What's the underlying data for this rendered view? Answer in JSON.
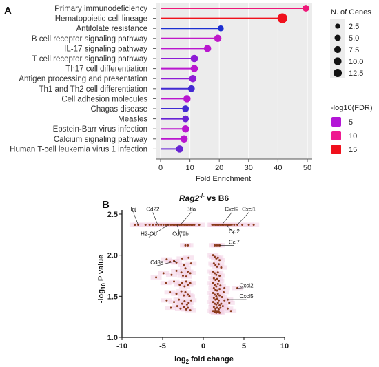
{
  "chart_data": [
    {
      "panel": "A",
      "type": "lollipop",
      "xlabel": "Fold Enrichment",
      "xlim": [
        0,
        52
      ],
      "xticks": [
        0,
        10,
        20,
        30,
        40,
        50
      ],
      "categories": [
        "Primary immunodeficiency",
        "Hematopoietic cell lineage",
        "Antifolate resistance",
        "B cell receptor signaling pathway",
        "IL-17 signaling pathway",
        "T cell receptor signaling pathway",
        "Th17 cell differentiation",
        "Antigen processing and presentation",
        "Th1 and Th2 cell differentiation",
        "Cell adhesion molecules",
        "Chagas disease",
        "Measles",
        "Epstein-Barr virus infection",
        "Calcium signaling pathway",
        "Human T-cell leukemia virus 1 infection"
      ],
      "values": [
        49.5,
        41.5,
        20.5,
        19.5,
        16,
        11.5,
        11.5,
        11,
        10.5,
        9,
        8.5,
        8.5,
        8.5,
        8,
        6.5
      ],
      "n_genes": [
        4,
        12.5,
        2.5,
        5,
        5,
        5,
        5,
        5,
        4,
        5,
        4,
        4,
        5,
        5,
        5
      ],
      "neg_log10_fdr": [
        11,
        16,
        3,
        6,
        5.5,
        4.5,
        5.5,
        4.5,
        3.5,
        5.5,
        3.5,
        4,
        5.5,
        5.5,
        4
      ],
      "legend_size": {
        "title": "N. of Genes",
        "entries": [
          "2.5",
          "5.0",
          "7.5",
          "10.0",
          "12.5"
        ],
        "values": [
          2.5,
          5,
          7.5,
          10,
          12.5
        ]
      },
      "legend_color": {
        "title": "-log10(FDR)",
        "entries": [
          "5",
          "10",
          "15"
        ],
        "colors": [
          "#b316d6",
          "#ee1a90",
          "#f0101c"
        ]
      },
      "colors": {
        "low": "#1c2fd1",
        "mid": "#b316d6",
        "high1": "#ee1a90",
        "high2": "#f0101c",
        "panel_bg": "#ececec"
      }
    },
    {
      "panel": "B",
      "type": "scatter",
      "title_main": "Rag2",
      "title_sup": "-/-",
      "title_rest": " vs B6",
      "xlabel_main": "log",
      "xlabel_sub": "2",
      "xlabel_rest": " fold change",
      "ylabel_pre": "-log",
      "ylabel_sub": "10",
      "ylabel_rest": " P value",
      "xlim": [
        -10,
        10
      ],
      "ylim": [
        1.0,
        2.55
      ],
      "xticks": [
        "-10",
        "-5",
        "0",
        "5",
        "10"
      ],
      "xtick_values": [
        -10,
        -5,
        0,
        5,
        10
      ],
      "yticks": [
        "1.0",
        "1.5",
        "2.0",
        "2.5"
      ],
      "ytick_values": [
        1.0,
        1.5,
        2.0,
        2.5
      ],
      "point_color": "#8b3a1a",
      "annotations": [
        {
          "label": "Igj",
          "x": -8,
          "y": 2.37,
          "lx": -8.6,
          "ly": 2.52
        },
        {
          "label": "Cd22",
          "x": -5.6,
          "y": 2.37,
          "lx": -6.2,
          "ly": 2.52
        },
        {
          "label": "Btla",
          "x": -2.8,
          "y": 2.37,
          "lx": -1.5,
          "ly": 2.52
        },
        {
          "label": "Cxcl9",
          "x": 2.3,
          "y": 2.37,
          "lx": 3.5,
          "ly": 2.52
        },
        {
          "label": "Cxcl1",
          "x": 4.2,
          "y": 2.37,
          "lx": 5.6,
          "ly": 2.52
        },
        {
          "label": "H2-Ob",
          "x": -4.3,
          "y": 2.37,
          "lx": -6.7,
          "ly": 2.22
        },
        {
          "label": "Cd79b",
          "x": -3.2,
          "y": 2.37,
          "lx": -2.8,
          "ly": 2.22
        },
        {
          "label": "Ccl2",
          "x": 2.9,
          "y": 2.37,
          "lx": 3.8,
          "ly": 2.25
        },
        {
          "label": "Ccl7",
          "x": 2.0,
          "y": 2.12,
          "lx": 3.8,
          "ly": 2.12
        },
        {
          "label": "Cd8a",
          "x": -3.3,
          "y": 1.93,
          "lx": -5.7,
          "ly": 1.87
        },
        {
          "label": "Cxcl2",
          "x": 4.2,
          "y": 1.6,
          "lx": 5.3,
          "ly": 1.59
        },
        {
          "label": "Cxcl5",
          "x": 3.0,
          "y": 1.46,
          "lx": 5.3,
          "ly": 1.46
        }
      ],
      "points": [
        [
          -8.4,
          2.37
        ],
        [
          -8.0,
          2.37
        ],
        [
          -7.1,
          2.37
        ],
        [
          -6.6,
          2.37
        ],
        [
          -6.2,
          2.37
        ],
        [
          -5.8,
          2.37
        ],
        [
          -5.5,
          2.37
        ],
        [
          -5.2,
          2.37
        ],
        [
          -4.9,
          2.37
        ],
        [
          -4.6,
          2.37
        ],
        [
          -4.3,
          2.37
        ],
        [
          -4.0,
          2.37
        ],
        [
          -3.7,
          2.37
        ],
        [
          -3.5,
          2.37
        ],
        [
          -3.3,
          2.37
        ],
        [
          -3.1,
          2.37
        ],
        [
          -2.9,
          2.37
        ],
        [
          -2.7,
          2.37
        ],
        [
          -2.5,
          2.37
        ],
        [
          -2.3,
          2.37
        ],
        [
          -2.1,
          2.37
        ],
        [
          -1.9,
          2.37
        ],
        [
          -1.7,
          2.37
        ],
        [
          -1.5,
          2.37
        ],
        [
          -1.3,
          2.37
        ],
        [
          -1.1,
          2.37
        ],
        [
          -0.5,
          2.37
        ],
        [
          1.1,
          2.37
        ],
        [
          1.3,
          2.37
        ],
        [
          1.5,
          2.37
        ],
        [
          1.7,
          2.37
        ],
        [
          1.9,
          2.37
        ],
        [
          2.1,
          2.37
        ],
        [
          2.3,
          2.37
        ],
        [
          2.5,
          2.37
        ],
        [
          2.7,
          2.37
        ],
        [
          2.9,
          2.37
        ],
        [
          3.1,
          2.37
        ],
        [
          3.3,
          2.37
        ],
        [
          3.5,
          2.37
        ],
        [
          3.8,
          2.37
        ],
        [
          4.2,
          2.37
        ],
        [
          4.8,
          2.37
        ],
        [
          5.6,
          2.37
        ],
        [
          6.2,
          2.37
        ],
        [
          -2.2,
          2.12
        ],
        [
          -1.9,
          2.12
        ],
        [
          1.4,
          2.12
        ],
        [
          1.6,
          2.12
        ],
        [
          1.8,
          2.12
        ],
        [
          2.0,
          2.12
        ],
        [
          -5.8,
          1.73
        ],
        [
          -4.5,
          1.95
        ],
        [
          -4.1,
          1.92
        ],
        [
          -3.6,
          1.93
        ],
        [
          -3.3,
          1.91
        ],
        [
          -2.6,
          1.96
        ],
        [
          -2.4,
          1.88
        ],
        [
          -2.2,
          1.84
        ],
        [
          -1.8,
          1.97
        ],
        [
          -1.5,
          1.9
        ],
        [
          -4.9,
          1.78
        ],
        [
          -3.9,
          1.76
        ],
        [
          -3.3,
          1.81
        ],
        [
          -2.7,
          1.79
        ],
        [
          -2.5,
          1.75
        ],
        [
          -2.1,
          1.74
        ],
        [
          -1.9,
          1.8
        ],
        [
          -1.6,
          1.78
        ],
        [
          -4.6,
          1.66
        ],
        [
          -3.6,
          1.68
        ],
        [
          -2.9,
          1.64
        ],
        [
          -2.6,
          1.66
        ],
        [
          -2.3,
          1.62
        ],
        [
          -2.1,
          1.68
        ],
        [
          -1.9,
          1.64
        ],
        [
          -1.6,
          1.66
        ],
        [
          -4.1,
          1.55
        ],
        [
          -3.3,
          1.53
        ],
        [
          -2.7,
          1.56
        ],
        [
          -2.4,
          1.51
        ],
        [
          -2.2,
          1.55
        ],
        [
          -1.9,
          1.52
        ],
        [
          -1.7,
          1.5
        ],
        [
          -4.5,
          1.45
        ],
        [
          -3.6,
          1.43
        ],
        [
          -3.0,
          1.46
        ],
        [
          -2.6,
          1.41
        ],
        [
          -2.3,
          1.44
        ],
        [
          -2.0,
          1.4
        ],
        [
          -1.8,
          1.42
        ],
        [
          -1.5,
          1.45
        ],
        [
          -3.2,
          1.38
        ],
        [
          -2.8,
          1.35
        ],
        [
          -2.4,
          1.37
        ],
        [
          -2.1,
          1.34
        ],
        [
          -1.9,
          1.36
        ],
        [
          -1.6,
          1.33
        ],
        [
          -4.0,
          1.36
        ],
        [
          1.2,
          2.0
        ],
        [
          1.4,
          1.98
        ],
        [
          1.6,
          1.96
        ],
        [
          1.8,
          1.97
        ],
        [
          2.0,
          1.94
        ],
        [
          1.3,
          1.9
        ],
        [
          1.5,
          1.88
        ],
        [
          1.7,
          1.86
        ],
        [
          1.9,
          1.89
        ],
        [
          2.2,
          1.85
        ],
        [
          1.2,
          1.8
        ],
        [
          1.4,
          1.78
        ],
        [
          1.6,
          1.76
        ],
        [
          1.8,
          1.79
        ],
        [
          2.0,
          1.75
        ],
        [
          1.3,
          1.72
        ],
        [
          1.5,
          1.7
        ],
        [
          1.7,
          1.71
        ],
        [
          1.9,
          1.69
        ],
        [
          1.2,
          1.66
        ],
        [
          1.4,
          1.64
        ],
        [
          1.6,
          1.62
        ],
        [
          1.8,
          1.65
        ],
        [
          2.1,
          1.63
        ],
        [
          1.3,
          1.6
        ],
        [
          1.5,
          1.58
        ],
        [
          1.7,
          1.57
        ],
        [
          2.0,
          1.59
        ],
        [
          2.6,
          1.6
        ],
        [
          1.2,
          1.54
        ],
        [
          1.4,
          1.52
        ],
        [
          1.6,
          1.5
        ],
        [
          1.8,
          1.53
        ],
        [
          2.0,
          1.51
        ],
        [
          1.3,
          1.48
        ],
        [
          1.5,
          1.46
        ],
        [
          1.7,
          1.47
        ],
        [
          1.9,
          1.45
        ],
        [
          2.3,
          1.49
        ],
        [
          1.2,
          1.43
        ],
        [
          1.4,
          1.41
        ],
        [
          1.6,
          1.4
        ],
        [
          1.8,
          1.42
        ],
        [
          2.0,
          1.39
        ],
        [
          2.2,
          1.41
        ],
        [
          1.3,
          1.37
        ],
        [
          1.5,
          1.35
        ],
        [
          1.7,
          1.36
        ],
        [
          1.9,
          1.34
        ],
        [
          2.1,
          1.36
        ],
        [
          2.4,
          1.38
        ],
        [
          3.0,
          1.46
        ],
        [
          4.2,
          1.6
        ],
        [
          1.2,
          1.32
        ],
        [
          1.4,
          1.31
        ],
        [
          1.6,
          1.3
        ],
        [
          1.8,
          1.31
        ],
        [
          2.0,
          1.3
        ],
        [
          1.5,
          1.33
        ],
        [
          1.7,
          1.32
        ],
        [
          1.9,
          1.31
        ],
        [
          3.4,
          1.32
        ],
        [
          3.0,
          1.35
        ],
        [
          2.6,
          1.45
        ],
        [
          2.5,
          1.55
        ],
        [
          3.2,
          1.42
        ]
      ]
    }
  ]
}
